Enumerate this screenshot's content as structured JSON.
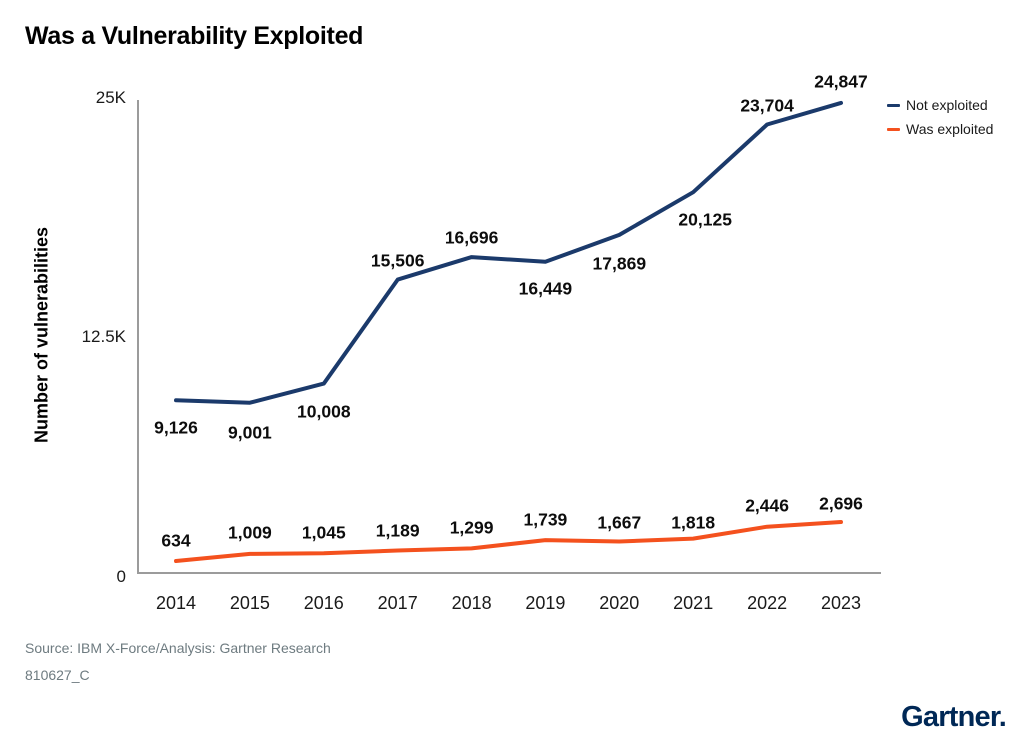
{
  "title": "Was a Vulnerability Exploited",
  "chart_data": {
    "type": "line",
    "x": [
      2014,
      2015,
      2016,
      2017,
      2018,
      2019,
      2020,
      2021,
      2022,
      2023
    ],
    "xlabel": "",
    "ylabel": "Number of vulnerabilities",
    "ylim": [
      0,
      25000
    ],
    "yticks": [
      {
        "value": 0,
        "label": "0"
      },
      {
        "value": 12500,
        "label": "12.5K"
      },
      {
        "value": 25000,
        "label": "25K"
      }
    ],
    "grid": false,
    "legend_position": "top-right",
    "series": [
      {
        "name": "Not exploited",
        "color": "#1b3a6b",
        "values": [
          9126,
          9001,
          10008,
          15506,
          16696,
          16449,
          17869,
          20125,
          23704,
          24847
        ],
        "labels": [
          "9,126",
          "9,001",
          "10,008",
          "15,506",
          "16,696",
          "16,449",
          "17,869",
          "20,125",
          "23,704",
          "24,847"
        ]
      },
      {
        "name": "Was exploited",
        "color": "#f4511e",
        "values": [
          634,
          1009,
          1045,
          1189,
          1299,
          1739,
          1667,
          1818,
          2446,
          2696
        ],
        "labels": [
          "634",
          "1,009",
          "1,045",
          "1,189",
          "1,299",
          "1,739",
          "1,667",
          "1,818",
          "2,446",
          "2,696"
        ]
      }
    ],
    "label_layout": [
      {
        "dx": [
          0,
          0,
          0,
          0,
          0,
          0,
          0,
          12,
          0,
          0
        ],
        "dy": [
          28,
          30,
          28,
          -19,
          -19,
          27,
          29,
          28,
          -19,
          -21
        ]
      },
      {
        "dx": [
          0,
          0,
          0,
          0,
          0,
          0,
          0,
          0,
          0,
          0
        ],
        "dy": [
          -20,
          -21,
          -20,
          -20,
          -20,
          -20,
          -19,
          -16,
          -21,
          -18
        ]
      }
    ]
  },
  "footer": {
    "source": "Source: IBM X-Force/Analysis: Gartner Research",
    "doc_id": "810627_C"
  },
  "logo": {
    "text": "Gartner."
  },
  "colors": {
    "axis": "#9b9b9b",
    "data_label": "#0d0d0d",
    "source_text": "#6e7b80",
    "logo_navy": "#002856"
  }
}
